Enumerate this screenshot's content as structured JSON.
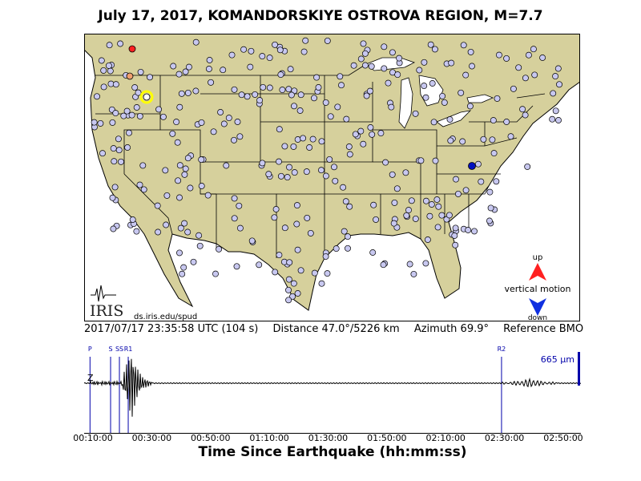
{
  "title": "July 17, 2017, KOMANDORSKIYE OSTROVA REGION, M=7.7",
  "map": {
    "land_color": "#d6d09c",
    "water_color": "#ffffff",
    "station_color": "#c8c8f0",
    "logo_text": "IRIS",
    "credit": "ds.iris.edu/spud",
    "legend": {
      "up": "up",
      "motion": "vertical motion",
      "down": "down"
    },
    "up_color": "#ff2020",
    "down_color": "#1030e0",
    "reference_color": "#0010c0",
    "marker_color": "#ffff00"
  },
  "info": {
    "time": "2017/07/17 23:35:58 UTC (104 s)",
    "distance": "Distance  47.0°/5226 km",
    "azimuth": "Azimuth  69.9°",
    "reference": "Reference BMO"
  },
  "seismogram": {
    "component": "Z",
    "amplitude_label": "665 μm",
    "trace_color": "#000000",
    "phase_color": "#0000aa",
    "time_start_s": 420,
    "time_end_s": 10560,
    "phases": [
      {
        "name": "P",
        "time_s": 540
      },
      {
        "name": "S",
        "time_s": 960
      },
      {
        "name": "SS",
        "time_s": 1140
      },
      {
        "name": "R1",
        "time_s": 1320
      },
      {
        "name": "R2",
        "time_s": 8940
      }
    ],
    "ticks": [
      "00:10:00",
      "00:30:00",
      "00:50:00",
      "01:10:00",
      "01:30:00",
      "01:50:00",
      "02:10:00",
      "02:30:00",
      "02:50:00"
    ],
    "tick_times_s": [
      600,
      1800,
      3000,
      4200,
      5400,
      6600,
      7800,
      9000,
      10200
    ]
  },
  "xlabel": "Time Since Earthquake (hh:mm:ss)"
}
